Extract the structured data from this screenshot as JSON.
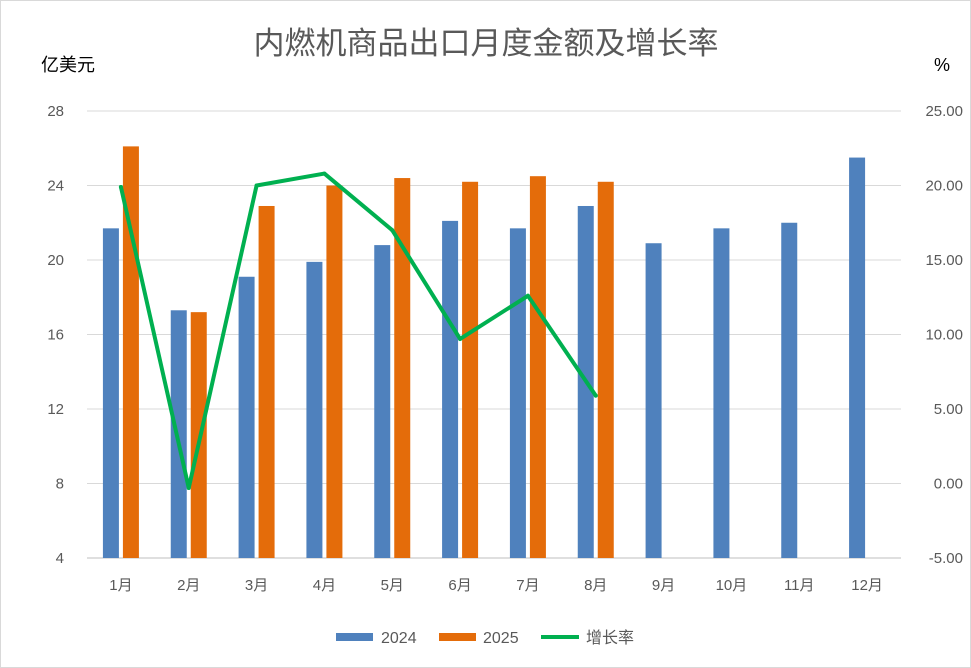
{
  "chart_data": {
    "type": "bar",
    "title": "内燃机商品出口月度金额及增长率",
    "ylabel": "亿美元",
    "y2label": "%",
    "categories": [
      "1月",
      "2月",
      "3月",
      "4月",
      "5月",
      "6月",
      "7月",
      "8月",
      "9月",
      "10月",
      "11月",
      "12月"
    ],
    "ylim": [
      4,
      28
    ],
    "yticks": [
      "4",
      "8",
      "12",
      "16",
      "20",
      "24",
      "28"
    ],
    "y2lim": [
      -5,
      25
    ],
    "y2ticks": [
      "-5.00",
      "0.00",
      "5.00",
      "10.00",
      "15.00",
      "20.00",
      "25.00"
    ],
    "grid": true,
    "legend": "bottom",
    "series": [
      {
        "name": "2024",
        "type": "bar",
        "axis": "left",
        "color": "#4F81BD",
        "values": [
          21.7,
          17.3,
          19.1,
          19.9,
          20.8,
          22.1,
          21.7,
          22.9,
          20.9,
          21.7,
          22.0,
          25.5
        ]
      },
      {
        "name": "2025",
        "type": "bar",
        "axis": "left",
        "color": "#E46C0A",
        "values": [
          26.1,
          17.2,
          22.9,
          24.0,
          24.4,
          24.2,
          24.5,
          24.2,
          null,
          null,
          null,
          null
        ]
      },
      {
        "name": "增长率",
        "type": "line",
        "axis": "right",
        "color": "#00B050",
        "values": [
          19.9,
          -0.3,
          20.0,
          20.8,
          17.0,
          9.7,
          12.6,
          5.9,
          null,
          null,
          null,
          null
        ]
      }
    ]
  }
}
